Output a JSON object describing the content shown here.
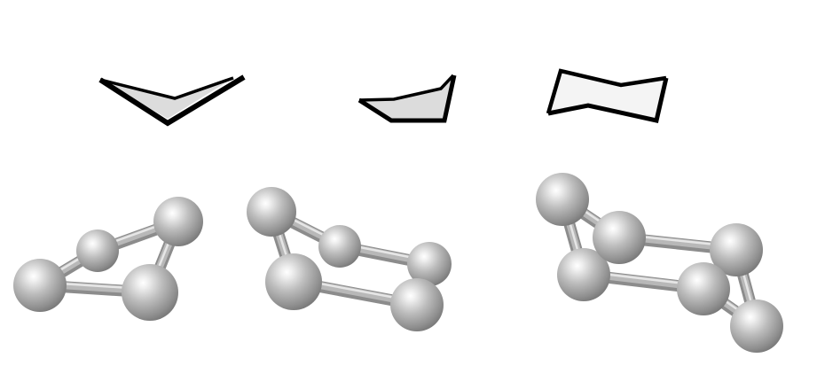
{
  "figure": {
    "background": "#ffffff",
    "outline_color": "#000000",
    "outline_shade_color": "#c8c8c8",
    "atom_color": "#9c9c9c",
    "bond_color": "#b8b8b8"
  },
  "molecules": [
    {
      "ring_size": 4,
      "atom_count": 4,
      "bond_count": 4
    },
    {
      "ring_size": 5,
      "atom_count": 5,
      "bond_count": 5
    },
    {
      "ring_size": 6,
      "atom_count": 6,
      "bond_count": 6
    }
  ]
}
